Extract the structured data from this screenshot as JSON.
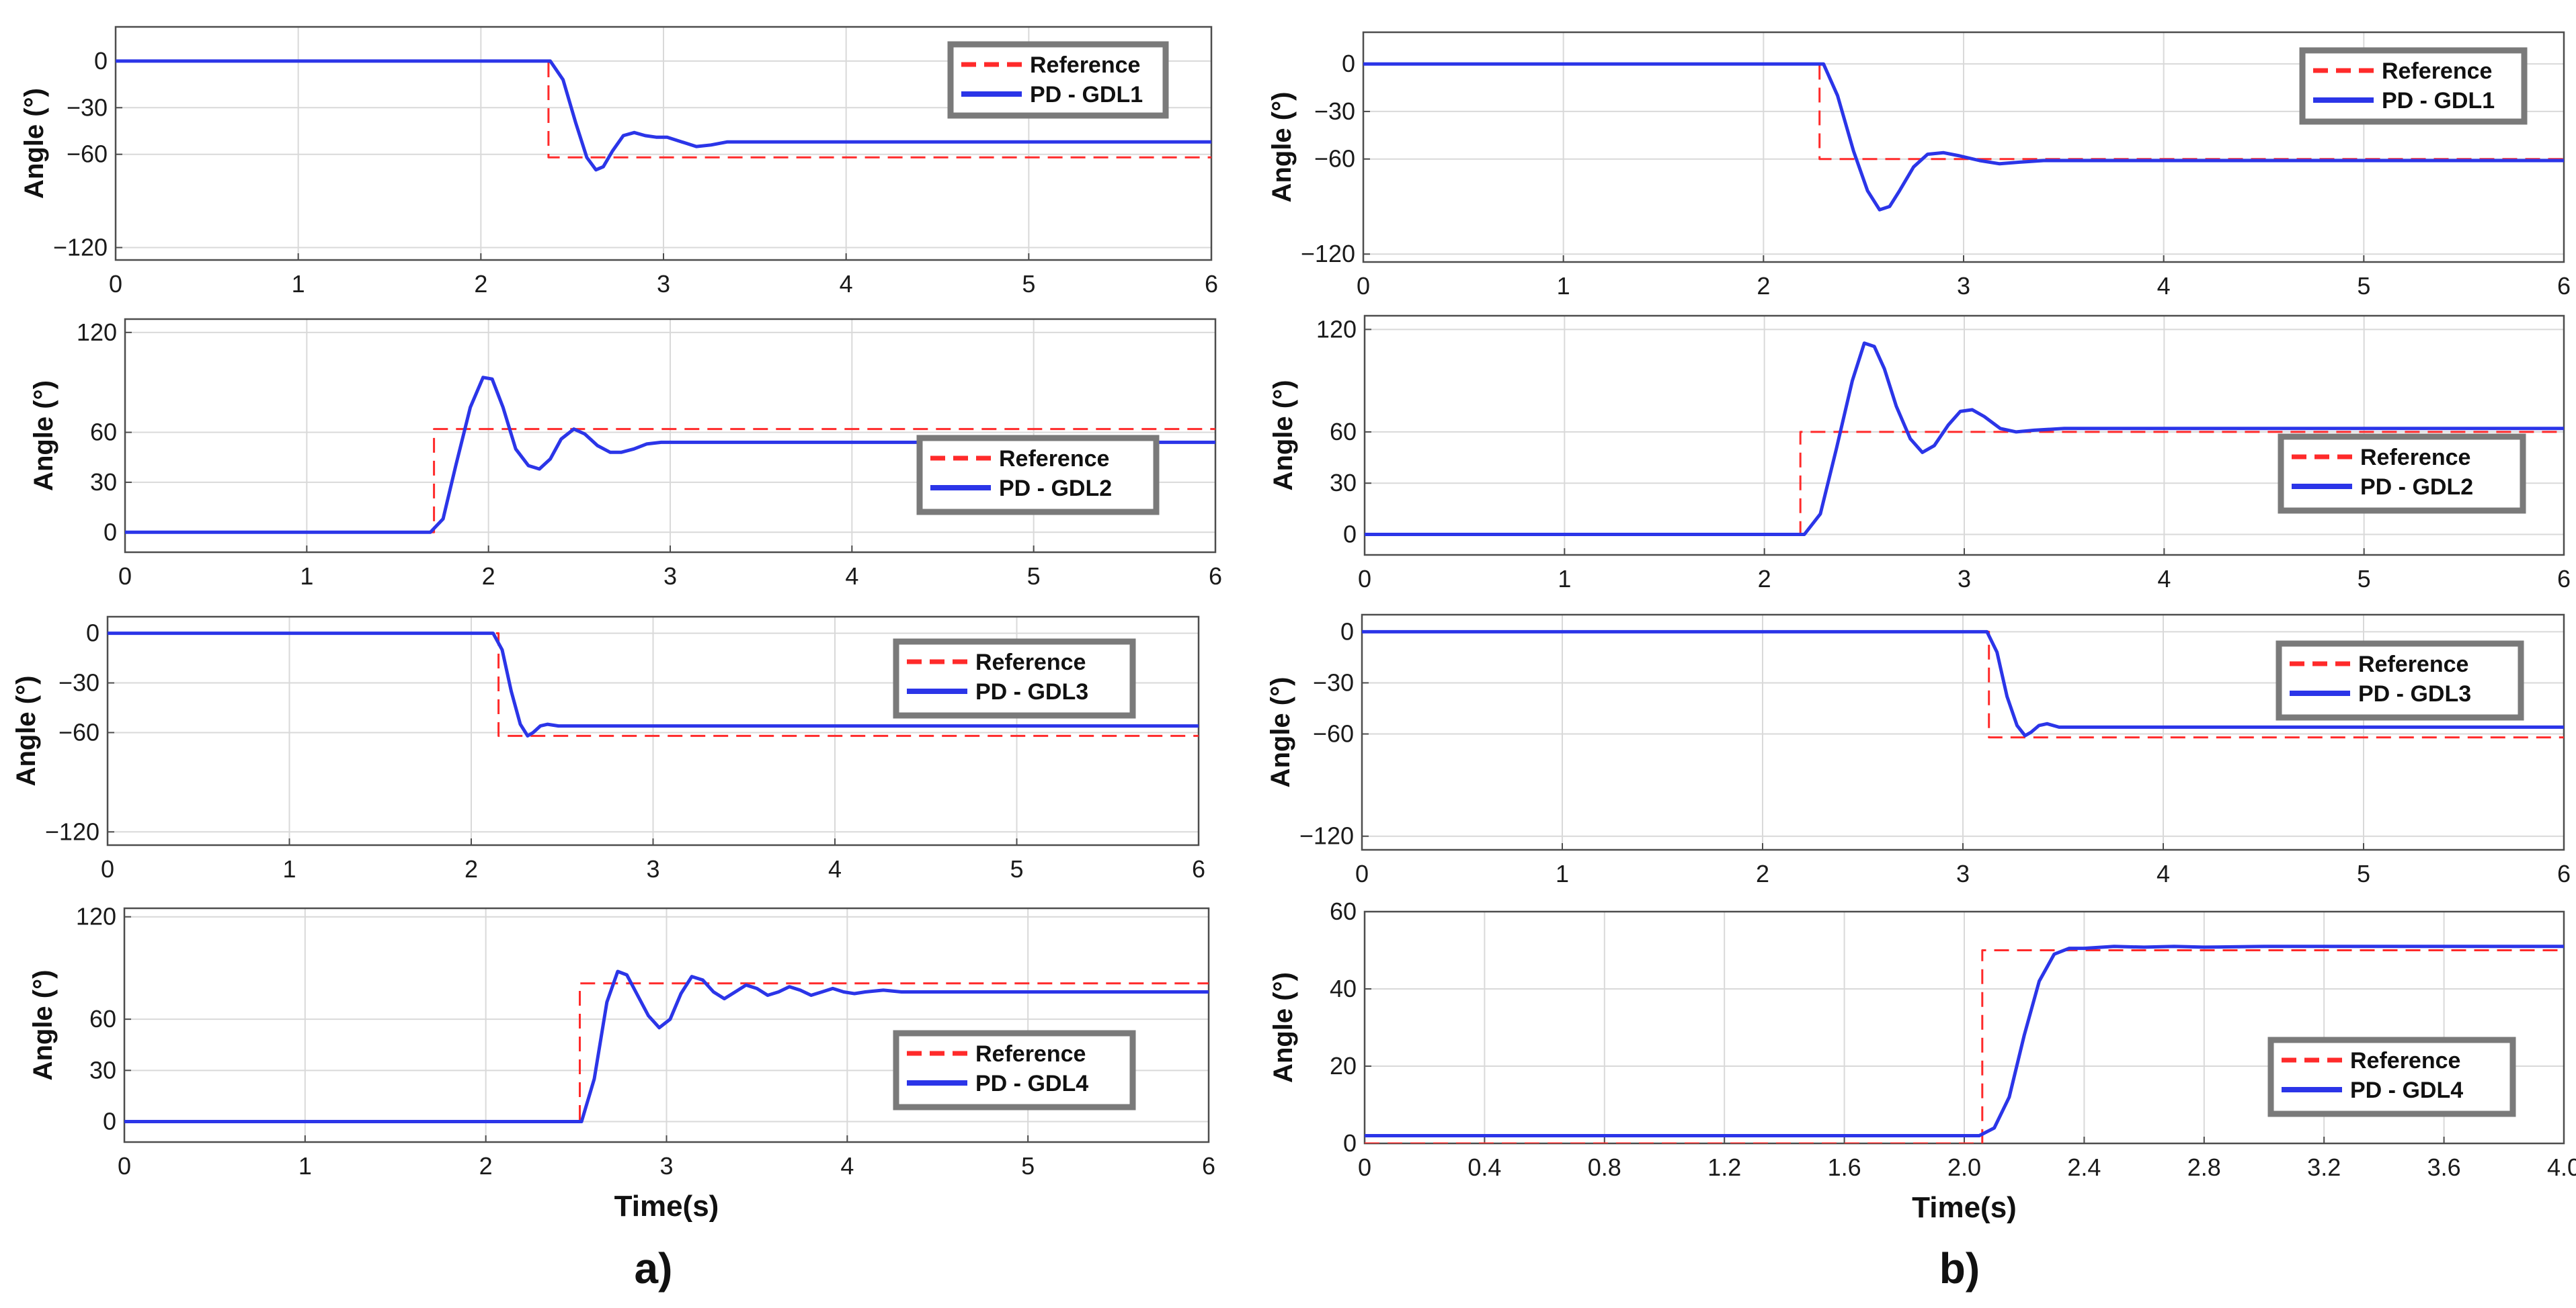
{
  "figure": {
    "column_labels": [
      "a)",
      "b)"
    ],
    "colors": {
      "reference": "#ff2a2a",
      "response": "#2b35e8",
      "grid": "#d9d9d9",
      "legend_border": "#7a7a7a"
    }
  },
  "chart_data": [
    {
      "type": "line",
      "column": "a",
      "row": 1,
      "title": "",
      "xlabel": "",
      "ylabel": "Angle (°)",
      "xlim": [
        0,
        6
      ],
      "ylim": [
        -128,
        22
      ],
      "xticks": [
        0,
        1,
        2,
        3,
        4,
        5,
        6
      ],
      "xtick_labels": [
        "0",
        "1",
        "2",
        "3",
        "4",
        "5",
        "6"
      ],
      "yticks": [
        0,
        -30,
        -60,
        -120
      ],
      "ytick_labels": [
        "0",
        "−30",
        "−60",
        "−120"
      ],
      "legend": {
        "entries": [
          "Reference",
          "PD - GDL1"
        ],
        "loc": "top-right"
      },
      "series": [
        {
          "name": "Reference",
          "style": "dashed",
          "x": [
            0,
            2.37,
            2.37,
            6.0
          ],
          "y": [
            0,
            0,
            -62,
            -62
          ]
        },
        {
          "name": "PD - GDL1",
          "style": "solid",
          "x": [
            0,
            2.38,
            2.45,
            2.52,
            2.58,
            2.63,
            2.67,
            2.72,
            2.78,
            2.84,
            2.9,
            2.96,
            3.02,
            3.1,
            3.18,
            3.26,
            3.35,
            3.45,
            4.0,
            5.0,
            6.0
          ],
          "y": [
            0,
            0,
            -12,
            -40,
            -62,
            -70,
            -68,
            -58,
            -48,
            -46,
            -48,
            -49,
            -49,
            -52,
            -55,
            -54,
            -52,
            -52,
            -52,
            -52,
            -52
          ]
        }
      ]
    },
    {
      "type": "line",
      "column": "a",
      "row": 2,
      "title": "",
      "xlabel": "",
      "ylabel": "Angle (°)",
      "xlim": [
        0,
        6
      ],
      "ylim": [
        -12,
        128
      ],
      "xticks": [
        0,
        1,
        2,
        3,
        4,
        5,
        6
      ],
      "xtick_labels": [
        "0",
        "1",
        "2",
        "3",
        "4",
        "5",
        "6"
      ],
      "yticks": [
        0,
        30,
        60,
        120
      ],
      "ytick_labels": [
        "0",
        "30",
        "60",
        "120"
      ],
      "legend": {
        "entries": [
          "Reference",
          "PD -  GDL2"
        ],
        "loc": "bottom-right"
      },
      "series": [
        {
          "name": "Reference",
          "style": "dashed",
          "x": [
            0,
            1.7,
            1.7,
            6.0
          ],
          "y": [
            0,
            0,
            62,
            62
          ]
        },
        {
          "name": "PD -  GDL2",
          "style": "solid",
          "x": [
            0,
            1.68,
            1.75,
            1.82,
            1.9,
            1.97,
            2.02,
            2.08,
            2.15,
            2.22,
            2.28,
            2.34,
            2.4,
            2.47,
            2.53,
            2.6,
            2.67,
            2.73,
            2.8,
            2.87,
            2.95,
            3.0,
            4.0,
            5.0,
            6.0
          ],
          "y": [
            0,
            0,
            8,
            40,
            75,
            93,
            92,
            75,
            50,
            40,
            38,
            44,
            56,
            62,
            59,
            52,
            48,
            48,
            50,
            53,
            54,
            54,
            54,
            54,
            54
          ]
        }
      ]
    },
    {
      "type": "line",
      "column": "a",
      "row": 3,
      "title": "",
      "xlabel": "",
      "ylabel": "Angle (°)",
      "xlim": [
        0,
        6
      ],
      "ylim": [
        -128,
        10
      ],
      "xticks": [
        0,
        1,
        2,
        3,
        4,
        5,
        6
      ],
      "xtick_labels": [
        "0",
        "1",
        "2",
        "3",
        "4",
        "5",
        "6"
      ],
      "yticks": [
        0,
        -30,
        -60,
        -120
      ],
      "ytick_labels": [
        "0",
        "−30",
        "−60",
        "−120"
      ],
      "legend": {
        "entries": [
          "Reference",
          "PD -  GDL3"
        ],
        "loc": "top-right"
      },
      "series": [
        {
          "name": "Reference",
          "style": "dashed",
          "x": [
            0,
            2.15,
            2.15,
            6.0
          ],
          "y": [
            0,
            0,
            -62,
            -62
          ]
        },
        {
          "name": "PD -  GDL3",
          "style": "solid",
          "x": [
            0,
            2.12,
            2.17,
            2.22,
            2.27,
            2.31,
            2.34,
            2.38,
            2.42,
            2.48,
            3.0,
            4.0,
            5.0,
            6.0
          ],
          "y": [
            0,
            0,
            -10,
            -35,
            -55,
            -62,
            -60,
            -56,
            -55,
            -56,
            -56,
            -56,
            -56,
            -56
          ]
        }
      ]
    },
    {
      "type": "line",
      "column": "a",
      "row": 4,
      "title": "",
      "xlabel": "Time(s)",
      "ylabel": "Angle (°)",
      "xlim": [
        0,
        6
      ],
      "ylim": [
        -12,
        125
      ],
      "xticks": [
        0,
        1,
        2,
        3,
        4,
        5,
        6
      ],
      "xtick_labels": [
        "0",
        "1",
        "2",
        "3",
        "4",
        "5",
        "6"
      ],
      "yticks": [
        0,
        30,
        60,
        120
      ],
      "ytick_labels": [
        "0",
        "30",
        "60",
        "120"
      ],
      "legend": {
        "entries": [
          "Reference",
          "PD - GDL4"
        ],
        "loc": "bottom-right"
      },
      "series": [
        {
          "name": "Reference",
          "style": "dashed",
          "x": [
            0,
            2.52,
            2.52,
            6.0
          ],
          "y": [
            0,
            0,
            81,
            81
          ]
        },
        {
          "name": "PD - GDL4",
          "style": "solid",
          "x": [
            0,
            2.53,
            2.6,
            2.67,
            2.73,
            2.78,
            2.83,
            2.9,
            2.96,
            3.02,
            3.08,
            3.14,
            3.2,
            3.26,
            3.32,
            3.38,
            3.44,
            3.5,
            3.56,
            3.62,
            3.68,
            3.74,
            3.8,
            3.86,
            3.92,
            3.98,
            4.04,
            4.1,
            4.2,
            4.3,
            4.4,
            5.0,
            6.0
          ],
          "y": [
            0,
            0,
            25,
            70,
            88,
            86,
            76,
            62,
            55,
            60,
            75,
            85,
            83,
            76,
            72,
            76,
            80,
            78,
            74,
            76,
            79,
            77,
            74,
            76,
            78,
            76,
            75,
            76,
            77,
            76,
            76,
            76,
            76
          ]
        }
      ]
    },
    {
      "type": "line",
      "column": "b",
      "row": 1,
      "title": "",
      "xlabel": "",
      "ylabel": "Angle (°)",
      "xlim": [
        0,
        6
      ],
      "ylim": [
        -125,
        20
      ],
      "xticks": [
        0,
        1,
        2,
        3,
        4,
        5,
        6
      ],
      "xtick_labels": [
        "0",
        "1",
        "2",
        "3",
        "4",
        "5",
        "6"
      ],
      "yticks": [
        0,
        -30,
        -60,
        -120
      ],
      "ytick_labels": [
        "0",
        "−30",
        "−60",
        "−120"
      ],
      "legend": {
        "entries": [
          "Reference",
          "PD - GDL1"
        ],
        "loc": "top-right"
      },
      "series": [
        {
          "name": "Reference",
          "style": "dashed",
          "x": [
            0,
            2.28,
            2.28,
            6.0
          ],
          "y": [
            0,
            0,
            -60,
            -60
          ]
        },
        {
          "name": "PD - GDL1",
          "style": "solid",
          "x": [
            0,
            2.3,
            2.37,
            2.45,
            2.52,
            2.58,
            2.63,
            2.68,
            2.75,
            2.82,
            2.9,
            2.98,
            3.08,
            3.18,
            3.28,
            3.4,
            4.0,
            5.0,
            6.0
          ],
          "y": [
            0,
            0,
            -20,
            -55,
            -80,
            -92,
            -90,
            -80,
            -65,
            -57,
            -56,
            -58,
            -61,
            -63,
            -62,
            -61,
            -61,
            -61,
            -61
          ]
        }
      ]
    },
    {
      "type": "line",
      "column": "b",
      "row": 2,
      "title": "",
      "xlabel": "",
      "ylabel": "Angle (°)",
      "xlim": [
        0,
        6
      ],
      "ylim": [
        -12,
        128
      ],
      "xticks": [
        0,
        1,
        2,
        3,
        4,
        5,
        6
      ],
      "xtick_labels": [
        "0",
        "1",
        "2",
        "3",
        "4",
        "5",
        "6"
      ],
      "yticks": [
        0,
        30,
        60,
        120
      ],
      "ytick_labels": [
        "0",
        "30",
        "60",
        "120"
      ],
      "legend": {
        "entries": [
          "Reference",
          "PD -  GDL2"
        ],
        "loc": "bottom-right"
      },
      "series": [
        {
          "name": "Reference",
          "style": "dashed",
          "x": [
            0,
            2.18,
            2.18,
            6.0
          ],
          "y": [
            0,
            0,
            60,
            60
          ]
        },
        {
          "name": "PD -  GDL2",
          "style": "solid",
          "x": [
            0,
            2.2,
            2.28,
            2.36,
            2.44,
            2.5,
            2.55,
            2.6,
            2.66,
            2.73,
            2.79,
            2.85,
            2.92,
            2.98,
            3.04,
            3.1,
            3.18,
            3.26,
            3.35,
            3.5,
            4.0,
            5.0,
            6.0
          ],
          "y": [
            0,
            0,
            12,
            50,
            90,
            112,
            110,
            97,
            75,
            56,
            48,
            52,
            64,
            72,
            73,
            69,
            62,
            60,
            61,
            62,
            62,
            62,
            62
          ]
        }
      ]
    },
    {
      "type": "line",
      "column": "b",
      "row": 3,
      "title": "",
      "xlabel": "",
      "ylabel": "Angle (°)",
      "xlim": [
        0,
        6
      ],
      "ylim": [
        -128,
        10
      ],
      "xticks": [
        0,
        1,
        2,
        3,
        4,
        5,
        6
      ],
      "xtick_labels": [
        "0",
        "1",
        "2",
        "3",
        "4",
        "5",
        "6"
      ],
      "yticks": [
        0,
        -30,
        -60,
        -120
      ],
      "ytick_labels": [
        "0",
        "−30",
        "−60",
        "−120"
      ],
      "legend": {
        "entries": [
          "Reference",
          "PD -  GDL3"
        ],
        "loc": "top-right"
      },
      "series": [
        {
          "name": "Reference",
          "style": "dashed",
          "x": [
            0,
            3.13,
            3.13,
            6.0
          ],
          "y": [
            0,
            0,
            -62,
            -62
          ]
        },
        {
          "name": "PD -  GDL3",
          "style": "solid",
          "x": [
            0,
            3.12,
            3.17,
            3.22,
            3.27,
            3.31,
            3.34,
            3.38,
            3.42,
            3.48,
            4.0,
            5.0,
            6.0
          ],
          "y": [
            0,
            0,
            -12,
            -38,
            -55,
            -61,
            -59,
            -55,
            -54,
            -56,
            -56,
            -56,
            -56
          ]
        }
      ]
    },
    {
      "type": "line",
      "column": "b",
      "row": 4,
      "title": "",
      "xlabel": "Time(s)",
      "ylabel": "Angle (°)",
      "xlim": [
        0,
        4.0
      ],
      "ylim": [
        0,
        60
      ],
      "xticks": [
        0,
        0.4,
        0.8,
        1.2,
        1.6,
        2.0,
        2.4,
        2.8,
        3.2,
        3.6,
        4.0
      ],
      "xtick_labels": [
        "0",
        "0.4",
        "0.8",
        "1.2",
        "1.6",
        "2.0",
        "2.4",
        "2.8",
        "3.2",
        "3.6",
        "4.0"
      ],
      "yticks": [
        0,
        20,
        40,
        60
      ],
      "ytick_labels": [
        "0",
        "20",
        "40",
        "60"
      ],
      "legend": {
        "entries": [
          "Reference",
          "PD - GDL4"
        ],
        "loc": "bottom-right"
      },
      "series": [
        {
          "name": "Reference",
          "style": "dashed",
          "x": [
            0,
            2.06,
            2.06,
            4.0
          ],
          "y": [
            0,
            0,
            50,
            50
          ]
        },
        {
          "name": "PD - GDL4",
          "style": "solid",
          "x": [
            0,
            2.05,
            2.1,
            2.15,
            2.2,
            2.25,
            2.3,
            2.35,
            2.4,
            2.5,
            2.6,
            2.7,
            2.8,
            3.0,
            3.5,
            4.0
          ],
          "y": [
            2,
            2,
            4,
            12,
            28,
            42,
            49,
            50.5,
            50.5,
            51,
            50.8,
            51,
            50.8,
            51,
            51,
            51
          ]
        }
      ]
    }
  ]
}
